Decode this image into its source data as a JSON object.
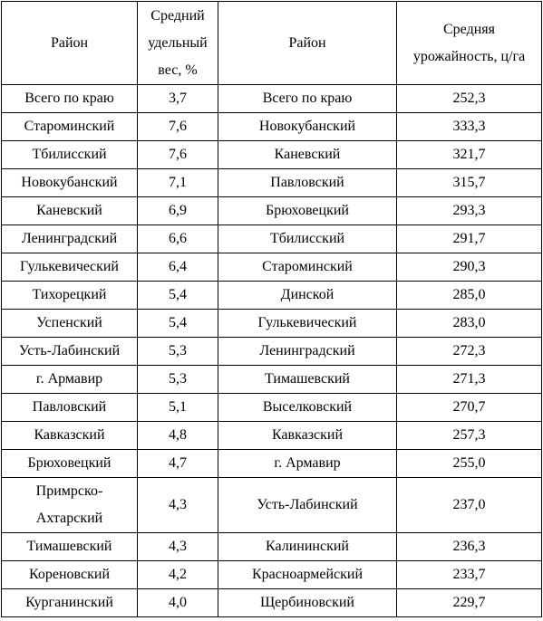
{
  "table": {
    "header": [
      "Район",
      "Средний удельный вес, %",
      "Район",
      "Средняя урожайность, ц/га"
    ],
    "rows": [
      [
        "Всего по краю",
        "3,7",
        "Всего по краю",
        "252,3"
      ],
      [
        "Староминский",
        "7,6",
        "Новокубанский",
        "333,3"
      ],
      [
        "Тбилисский",
        "7,6",
        "Каневский",
        "321,7"
      ],
      [
        "Новокубанский",
        "7,1",
        "Павловский",
        "315,7"
      ],
      [
        "Каневский",
        "6,9",
        "Брюховецкий",
        "293,3"
      ],
      [
        "Ленинградский",
        "6,6",
        "Тбилисский",
        "291,7"
      ],
      [
        "Гулькевичеcкий",
        "6,4",
        "Староминский",
        "290,3"
      ],
      [
        "Тихорецкий",
        "5,4",
        "Динской",
        "285,0"
      ],
      [
        "Успенский",
        "5,4",
        "Гулькевичеcкий",
        "283,0"
      ],
      [
        "Усть-Лабинский",
        "5,3",
        "Ленинградский",
        "272,3"
      ],
      [
        "г. Армавир",
        "5,3",
        "Тимашевский",
        "271,3"
      ],
      [
        "Павловский",
        "5,1",
        "Выселковский",
        "270,7"
      ],
      [
        "Кавказский",
        "4,8",
        "Кавказский",
        "257,3"
      ],
      [
        "Брюховецкий",
        "4,7",
        "г. Армавир",
        "255,0"
      ],
      [
        "Примрско-Ахтарский",
        "4,3",
        "Усть-Лабинский",
        "237,0"
      ],
      [
        "Тимашевский",
        "4,3",
        "Калининский",
        "236,3"
      ],
      [
        "Кореновский",
        "4,2",
        "Красноармейский",
        "233,7"
      ],
      [
        "Курганинский",
        "4,0",
        "Щербиновский",
        "229,7"
      ]
    ]
  }
}
